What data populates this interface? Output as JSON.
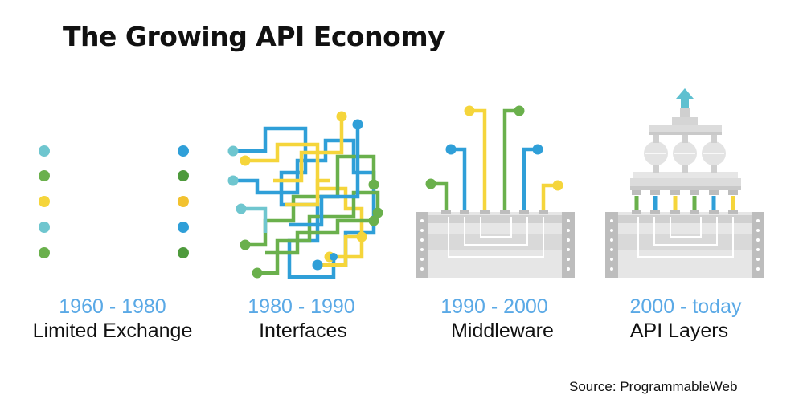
{
  "title": "The Growing API Economy",
  "colors": {
    "teal": "#6fc6cf",
    "blue": "#2f9fd8",
    "green": "#6ab04c",
    "yellow": "#f5d53b",
    "gray_dark": "#bdbdbd",
    "gray_light": "#e3e3e3",
    "years_text": "#5aa9e6"
  },
  "eras": [
    {
      "years": "1960 - 1980",
      "name": "Limited Exchange",
      "illustration": "parallel-lines-icon"
    },
    {
      "years": "1980 - 1990",
      "name": "Interfaces",
      "illustration": "tangled-wires-icon"
    },
    {
      "years": "1990 - 2000",
      "name": "Middleware",
      "illustration": "middleware-box-icon"
    },
    {
      "years": "2000 - today",
      "name": "API Layers",
      "illustration": "api-layers-icon"
    }
  ],
  "source": "Source: ProgrammableWeb"
}
